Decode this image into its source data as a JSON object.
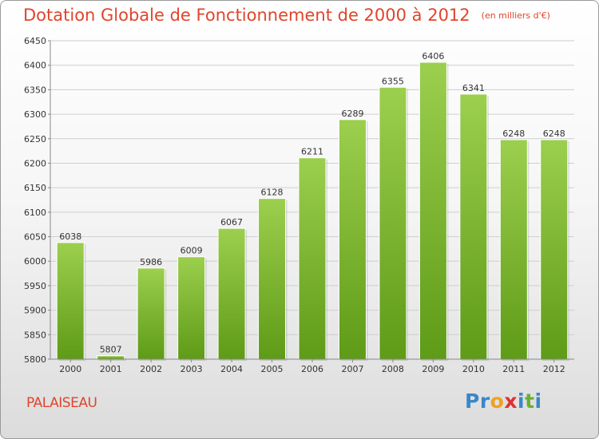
{
  "header": {
    "title": "Dotation Globale de Fonctionnement de 2000 à 2012",
    "unit": "(en milliers d'€)"
  },
  "footer": {
    "commune": "PALAISEAU",
    "logo_letters": [
      "P",
      "r",
      "o",
      "x",
      "i",
      "t",
      "i"
    ],
    "logo_colors": [
      "#3a87c8",
      "#3a87c8",
      "#f0a020",
      "#e03030",
      "#3a87c8",
      "#6ab030",
      "#3a87c8"
    ]
  },
  "colors": {
    "bar_top": "#9ccf4e",
    "bar_bottom": "#5e9b17",
    "title": "#e0452c",
    "grid": "#cfcfcf",
    "axis_text": "#333333"
  },
  "chart_data": {
    "type": "bar",
    "categories": [
      "2000",
      "2001",
      "2002",
      "2003",
      "2004",
      "2005",
      "2006",
      "2007",
      "2008",
      "2009",
      "2010",
      "2011",
      "2012"
    ],
    "values": [
      6038,
      5807,
      5986,
      6009,
      6067,
      6128,
      6211,
      6289,
      6355,
      6406,
      6341,
      6248,
      6248
    ],
    "title": "Dotation Globale de Fonctionnement de 2000 à 2012",
    "ylim": [
      5800,
      6450
    ],
    "yticks": [
      5800,
      5850,
      5900,
      5950,
      6000,
      6050,
      6100,
      6150,
      6200,
      6250,
      6300,
      6350,
      6400,
      6450
    ],
    "grid": true,
    "legend": "none"
  }
}
